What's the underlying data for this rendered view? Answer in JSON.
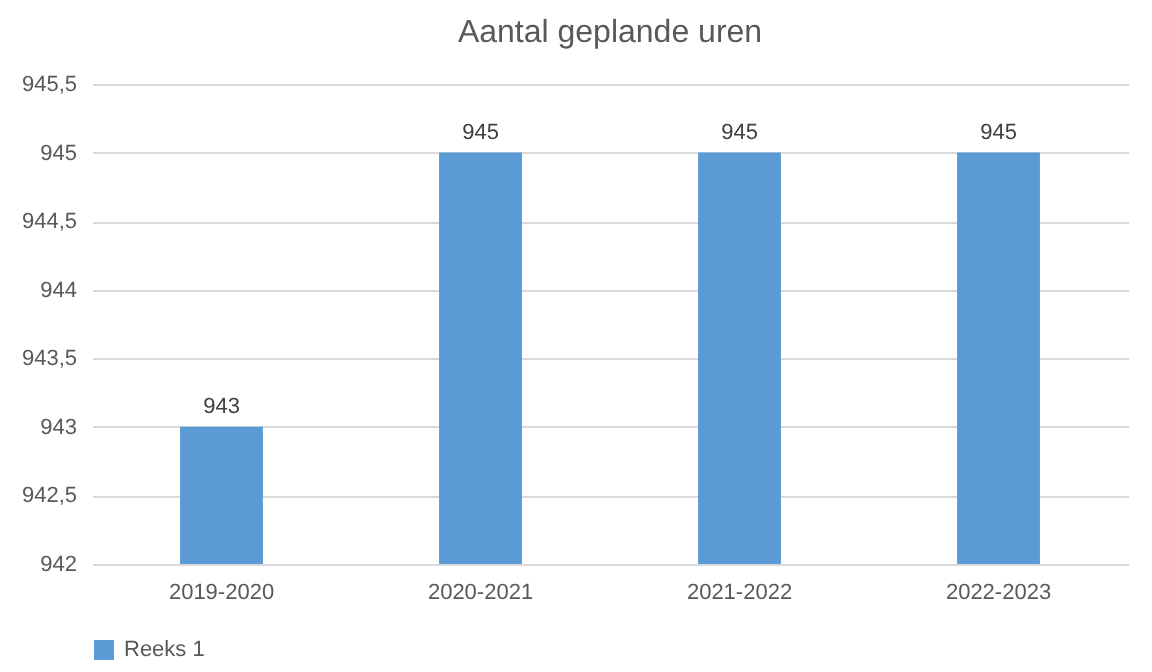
{
  "chart_data": {
    "type": "bar",
    "title": "Aantal geplande uren",
    "categories": [
      "2019-2020",
      "2020-2021",
      "2021-2022",
      "2022-2023"
    ],
    "series": [
      {
        "name": "Reeks 1",
        "color": "#5b9bd5",
        "values": [
          943,
          945,
          945,
          945
        ]
      }
    ],
    "ylim": [
      942,
      945.5
    ],
    "yticks": [
      942,
      {
        "value": 942.5,
        "label": "942,5"
      },
      943,
      {
        "value": 943.5,
        "label": "943,5"
      },
      944,
      {
        "value": 944.5,
        "label": "944,5"
      },
      945,
      {
        "value": 945.5,
        "label": "945,5"
      }
    ],
    "grid": "y",
    "legend": "bottom",
    "data_labels": true
  }
}
